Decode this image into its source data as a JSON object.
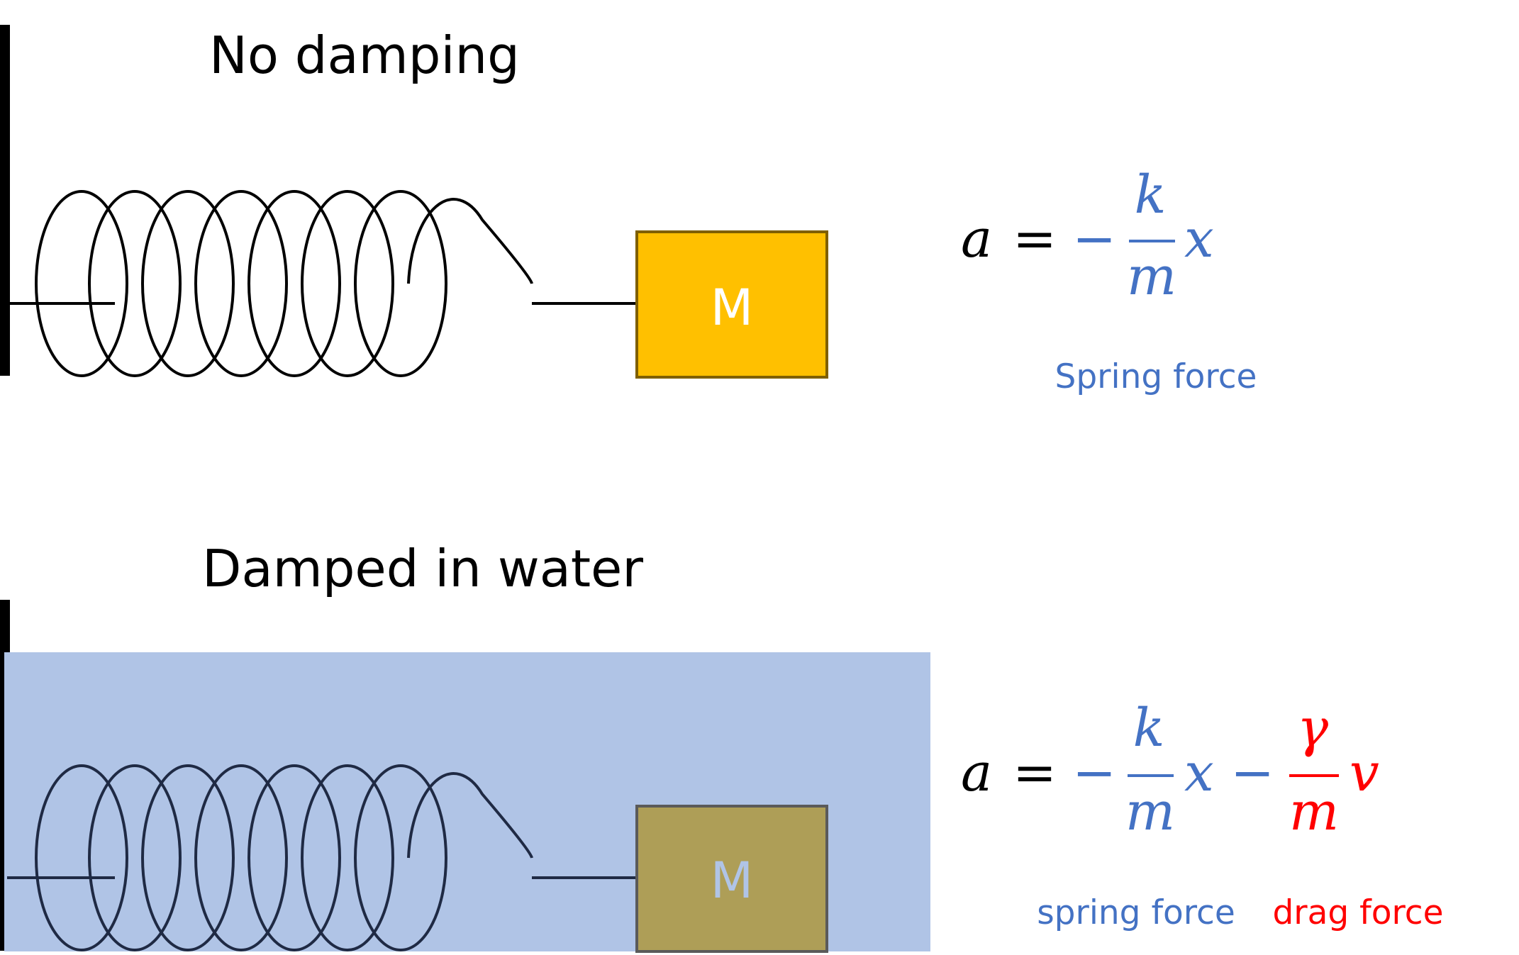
{
  "colors": {
    "black": "#000000",
    "blue": "#4472c4",
    "red": "#ff0000",
    "mass_fill": "#ffc000",
    "mass_stroke": "#7f6000",
    "water": "#b0c4e6",
    "mass_fill_water": "#ae9e57",
    "mass_label_water": "#b0c4e6",
    "mass_stroke_water": "#5a5a5a",
    "spring_water": "#1f2a44"
  },
  "panels": {
    "top": {
      "title": "No damping",
      "mass_label": "M",
      "equation": {
        "lhs": "a",
        "eq": "=",
        "minus": "−",
        "k": "k",
        "m": "m",
        "x": "x"
      },
      "label_spring": "Spring force"
    },
    "bottom": {
      "title": "Damped in water",
      "mass_label": "M",
      "equation": {
        "lhs": "a",
        "eq": "=",
        "minus1": "−",
        "k": "k",
        "m1": "m",
        "x": "x",
        "minus2": "−",
        "gamma": "γ",
        "m2": "m",
        "v": "v"
      },
      "label_spring": "spring force",
      "label_drag": "drag force"
    }
  }
}
